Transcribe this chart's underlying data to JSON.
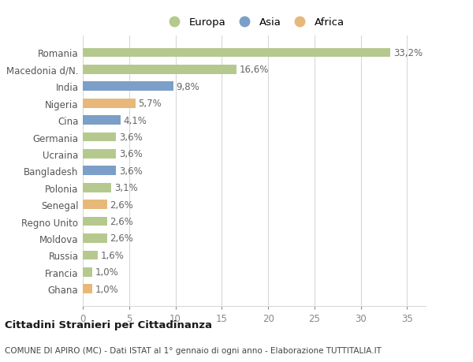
{
  "countries": [
    "Romania",
    "Macedonia d/N.",
    "India",
    "Nigeria",
    "Cina",
    "Germania",
    "Ucraina",
    "Bangladesh",
    "Polonia",
    "Senegal",
    "Regno Unito",
    "Moldova",
    "Russia",
    "Francia",
    "Ghana"
  ],
  "values": [
    33.2,
    16.6,
    9.8,
    5.7,
    4.1,
    3.6,
    3.6,
    3.6,
    3.1,
    2.6,
    2.6,
    2.6,
    1.6,
    1.0,
    1.0
  ],
  "labels": [
    "33,2%",
    "16,6%",
    "9,8%",
    "5,7%",
    "4,1%",
    "3,6%",
    "3,6%",
    "3,6%",
    "3,1%",
    "2,6%",
    "2,6%",
    "2,6%",
    "1,6%",
    "1,0%",
    "1,0%"
  ],
  "continents": [
    "Europa",
    "Europa",
    "Asia",
    "Africa",
    "Asia",
    "Europa",
    "Europa",
    "Asia",
    "Europa",
    "Africa",
    "Europa",
    "Europa",
    "Europa",
    "Europa",
    "Africa"
  ],
  "colors": {
    "Europa": "#b5c98e",
    "Asia": "#7b9fc7",
    "Africa": "#e8b87a"
  },
  "xlim": [
    0,
    37
  ],
  "xticks": [
    0,
    5,
    10,
    15,
    20,
    25,
    30,
    35
  ],
  "title1": "Cittadini Stranieri per Cittadinanza",
  "title2": "COMUNE DI APIRO (MC) - Dati ISTAT al 1° gennaio di ogni anno - Elaborazione TUTTITALIA.IT",
  "bg_color": "#ffffff",
  "plot_bg_color": "#ffffff",
  "grid_color": "#d8d8d8",
  "bar_height": 0.55,
  "label_fontsize": 8.5,
  "tick_fontsize": 8.5,
  "legend_order": [
    "Europa",
    "Asia",
    "Africa"
  ]
}
